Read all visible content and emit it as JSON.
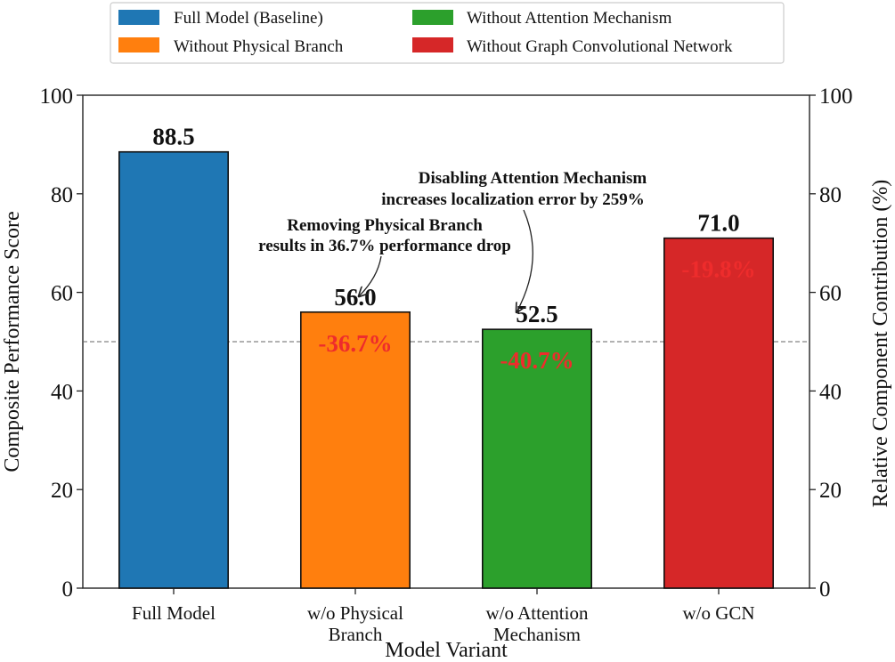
{
  "chart_data": {
    "type": "bar",
    "xlabel": "Model Variant",
    "ylabel": "Composite Performance Score",
    "ylabel_right": "Relative Component Contribution (%)",
    "ylim": [
      0,
      100
    ],
    "yticks": [
      0,
      20,
      40,
      60,
      80,
      100
    ],
    "yticks_right": [
      0,
      20,
      40,
      60,
      80,
      100
    ],
    "reference_line": 50,
    "categories": [
      [
        "Full Model"
      ],
      [
        "w/o Physical",
        "Branch"
      ],
      [
        "w/o Attention",
        "Mechanism"
      ],
      [
        "w/o GCN"
      ]
    ],
    "values": [
      88.5,
      56.0,
      52.5,
      71.0
    ],
    "value_labels": [
      "88.5",
      "56.0",
      "52.5",
      "71.0"
    ],
    "drop_labels": [
      null,
      "-36.7%",
      "-40.7%",
      "-19.8%"
    ],
    "colors": [
      "#1f77b4",
      "#ff7f0e",
      "#2ca02c",
      "#d62728"
    ],
    "drop_label_color": "#ee2c2c",
    "legend": {
      "placement": "top-center",
      "entries": [
        {
          "label": "Full Model (Baseline)",
          "color": "#1f77b4"
        },
        {
          "label": "Without Attention Mechanism",
          "color": "#2ca02c"
        },
        {
          "label": "Without Physical Branch",
          "color": "#ff7f0e"
        },
        {
          "label": "Without Graph Convolutional Network",
          "color": "#d62728"
        }
      ]
    },
    "annotations": [
      {
        "lines": [
          "Removing Physical Branch",
          "results in 36.7% performance drop"
        ],
        "target_bar": 1
      },
      {
        "lines": [
          "Disabling Attention Mechanism",
          "increases localization error by 259%"
        ],
        "target_bar": 2
      }
    ]
  }
}
